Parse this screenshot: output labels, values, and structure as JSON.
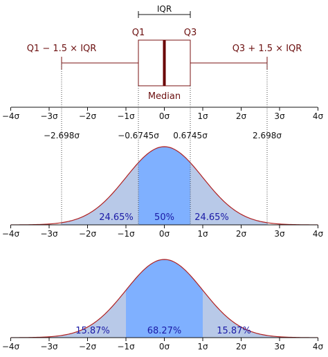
{
  "colors": {
    "boxplot": "#7a1010",
    "median": "#6a0000",
    "curve": "#b02020",
    "fill_outer": "#b8c9e8",
    "fill_inner": "#7fb0ff",
    "axis": "#111111",
    "guide": "#444444",
    "pct_text": "#1a1aa6"
  },
  "boxplot": {
    "iqr_label": "IQR",
    "q1_label": "Q1",
    "q3_label": "Q3",
    "lower_whisker_label": "Q1 − 1.5 × IQR",
    "upper_whisker_label": "Q3 + 1.5 × IQR",
    "median_label": "Median"
  },
  "chart_data": [
    {
      "type": "line",
      "curve": "normal density",
      "xlim": [
        -4,
        4
      ],
      "ticks": [
        "−4σ",
        "−3σ",
        "−2σ",
        "−1σ",
        "0σ",
        "1σ",
        "2σ",
        "3σ",
        "4σ"
      ],
      "boundary_values": [
        -2.698,
        -0.6745,
        0.6745,
        2.698
      ],
      "boundary_labels": [
        "−2.698σ",
        "−0.6745σ",
        "0.6745σ",
        "2.698σ"
      ],
      "regions": [
        {
          "from": -2.698,
          "to": -0.6745,
          "label": "24.65%"
        },
        {
          "from": -0.6745,
          "to": 0.6745,
          "label": "50%"
        },
        {
          "from": 0.6745,
          "to": 2.698,
          "label": "24.65%"
        }
      ]
    },
    {
      "type": "line",
      "curve": "normal density",
      "xlim": [
        -4,
        4
      ],
      "ticks": [
        "−4σ",
        "−3σ",
        "−2σ",
        "−1σ",
        "0σ",
        "1σ",
        "2σ",
        "3σ",
        "4σ"
      ],
      "regions": [
        {
          "from": -4,
          "to": -1,
          "label": "15.87%"
        },
        {
          "from": -1,
          "to": 1,
          "label": "68.27%"
        },
        {
          "from": 1,
          "to": 4,
          "label": "15.87%"
        }
      ]
    }
  ]
}
